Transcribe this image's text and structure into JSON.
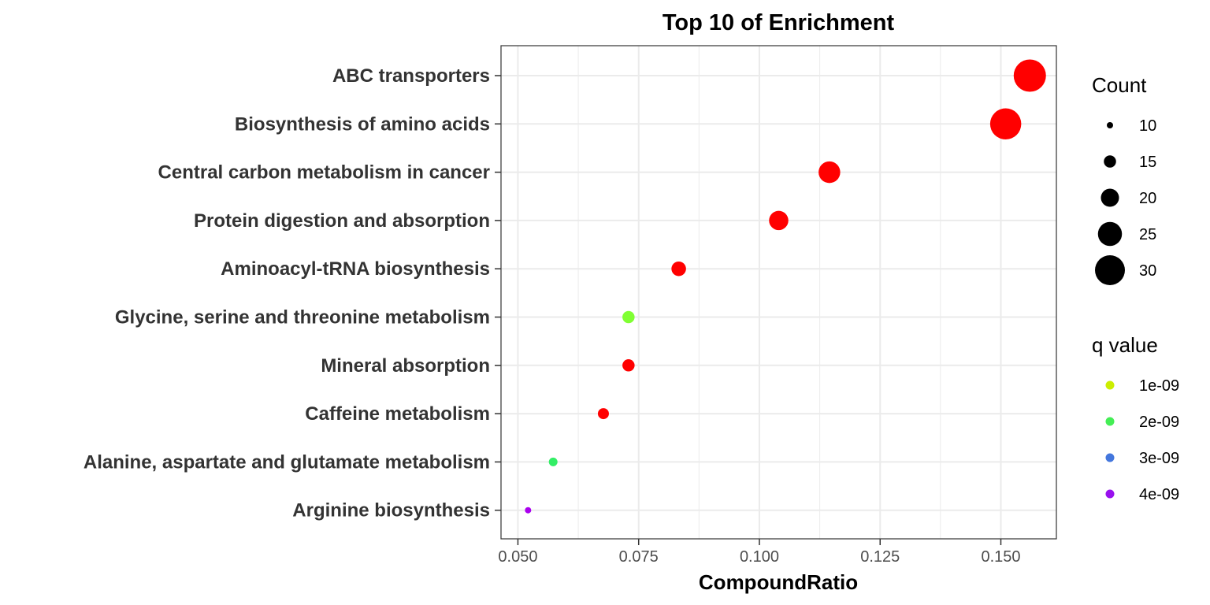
{
  "chart_data": {
    "type": "scatter",
    "title": "Top 10 of Enrichment",
    "xlabel": "CompoundRatio",
    "ylabel": "",
    "xlim": [
      0.0465,
      0.1615
    ],
    "xticks": [
      0.05,
      0.075,
      0.1,
      0.125,
      0.15
    ],
    "xtick_labels": [
      "0.050",
      "0.075",
      "0.100",
      "0.125",
      "0.150"
    ],
    "grid": true,
    "categories": [
      "ABC transporters",
      "Biosynthesis of amino acids",
      "Central carbon metabolism in cancer",
      "Protein digestion and absorption",
      "Aminoacyl-tRNA biosynthesis",
      "Glycine, serine and threonine metabolism",
      "Mineral absorption",
      "Caffeine metabolism",
      "Alanine, aspartate and glutamate metabolism",
      "Arginine biosynthesis"
    ],
    "points": [
      {
        "category": "ABC transporters",
        "x": 0.156,
        "count": 32,
        "color": "#ff0000"
      },
      {
        "category": "Biosynthesis of amino acids",
        "x": 0.151,
        "count": 31,
        "color": "#ff0000"
      },
      {
        "category": "Central carbon metabolism in cancer",
        "x": 0.1145,
        "count": 23,
        "color": "#ff0000"
      },
      {
        "category": "Protein digestion and absorption",
        "x": 0.104,
        "count": 21,
        "color": "#ff0000"
      },
      {
        "category": "Aminoacyl-tRNA biosynthesis",
        "x": 0.0833,
        "count": 17,
        "color": "#ff0000"
      },
      {
        "category": "Glycine, serine and threonine metabolism",
        "x": 0.0729,
        "count": 15,
        "color": "#80ff33"
      },
      {
        "category": "Mineral absorption",
        "x": 0.0729,
        "count": 15,
        "color": "#ff0000"
      },
      {
        "category": "Caffeine metabolism",
        "x": 0.0677,
        "count": 14,
        "color": "#ff0000"
      },
      {
        "category": "Alanine, aspartate and glutamate metabolism",
        "x": 0.0573,
        "count": 12,
        "color": "#33ee66"
      },
      {
        "category": "Arginine biosynthesis",
        "x": 0.0521,
        "count": 10,
        "color": "#aa00ee"
      }
    ],
    "legend_size": {
      "title": "Count",
      "entries": [
        {
          "label": "10",
          "count": 10
        },
        {
          "label": "15",
          "count": 15
        },
        {
          "label": "20",
          "count": 20
        },
        {
          "label": "25",
          "count": 25
        },
        {
          "label": "30",
          "count": 30
        }
      ]
    },
    "legend_color": {
      "title": "q value",
      "entries": [
        {
          "label": "1e-09",
          "color": "#ccee00"
        },
        {
          "label": "2e-09",
          "color": "#44ee55"
        },
        {
          "label": "3e-09",
          "color": "#4477dd"
        },
        {
          "label": "4e-09",
          "color": "#9911ee"
        }
      ]
    },
    "legend_placement": "right"
  }
}
